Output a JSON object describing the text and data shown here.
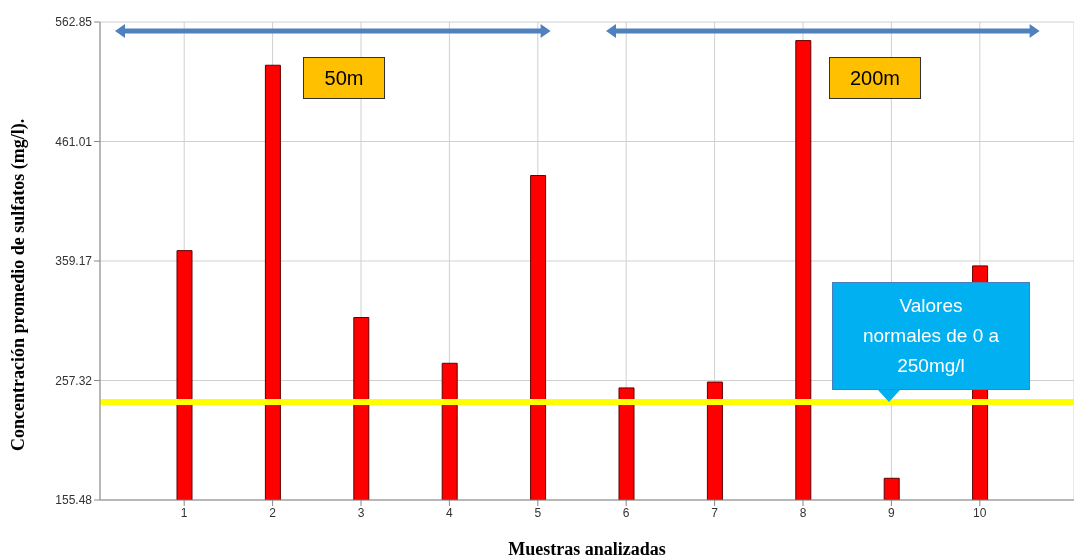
{
  "chart_data": {
    "type": "bar",
    "xlabel": "Muestras analizadas",
    "ylabel": "Concentración promedio de sulfatos (mg/l).",
    "categories": [
      "1",
      "2",
      "3",
      "4",
      "5",
      "6",
      "7",
      "8",
      "9",
      "10"
    ],
    "values": [
      368,
      526,
      311,
      272,
      432,
      251,
      256,
      547,
      174,
      355
    ],
    "color": "#ff0000",
    "ylim": [
      155.48,
      562.85
    ],
    "yticks": [
      155.48,
      257.32,
      359.17,
      461.01,
      562.85
    ],
    "grid": true,
    "ref_lines": [
      {
        "axis": "y",
        "value": 239,
        "color": "#ffff00"
      }
    ],
    "annotations": [
      "50m",
      "200m",
      "Valores normales de 0 a 250mg/l"
    ]
  }
}
